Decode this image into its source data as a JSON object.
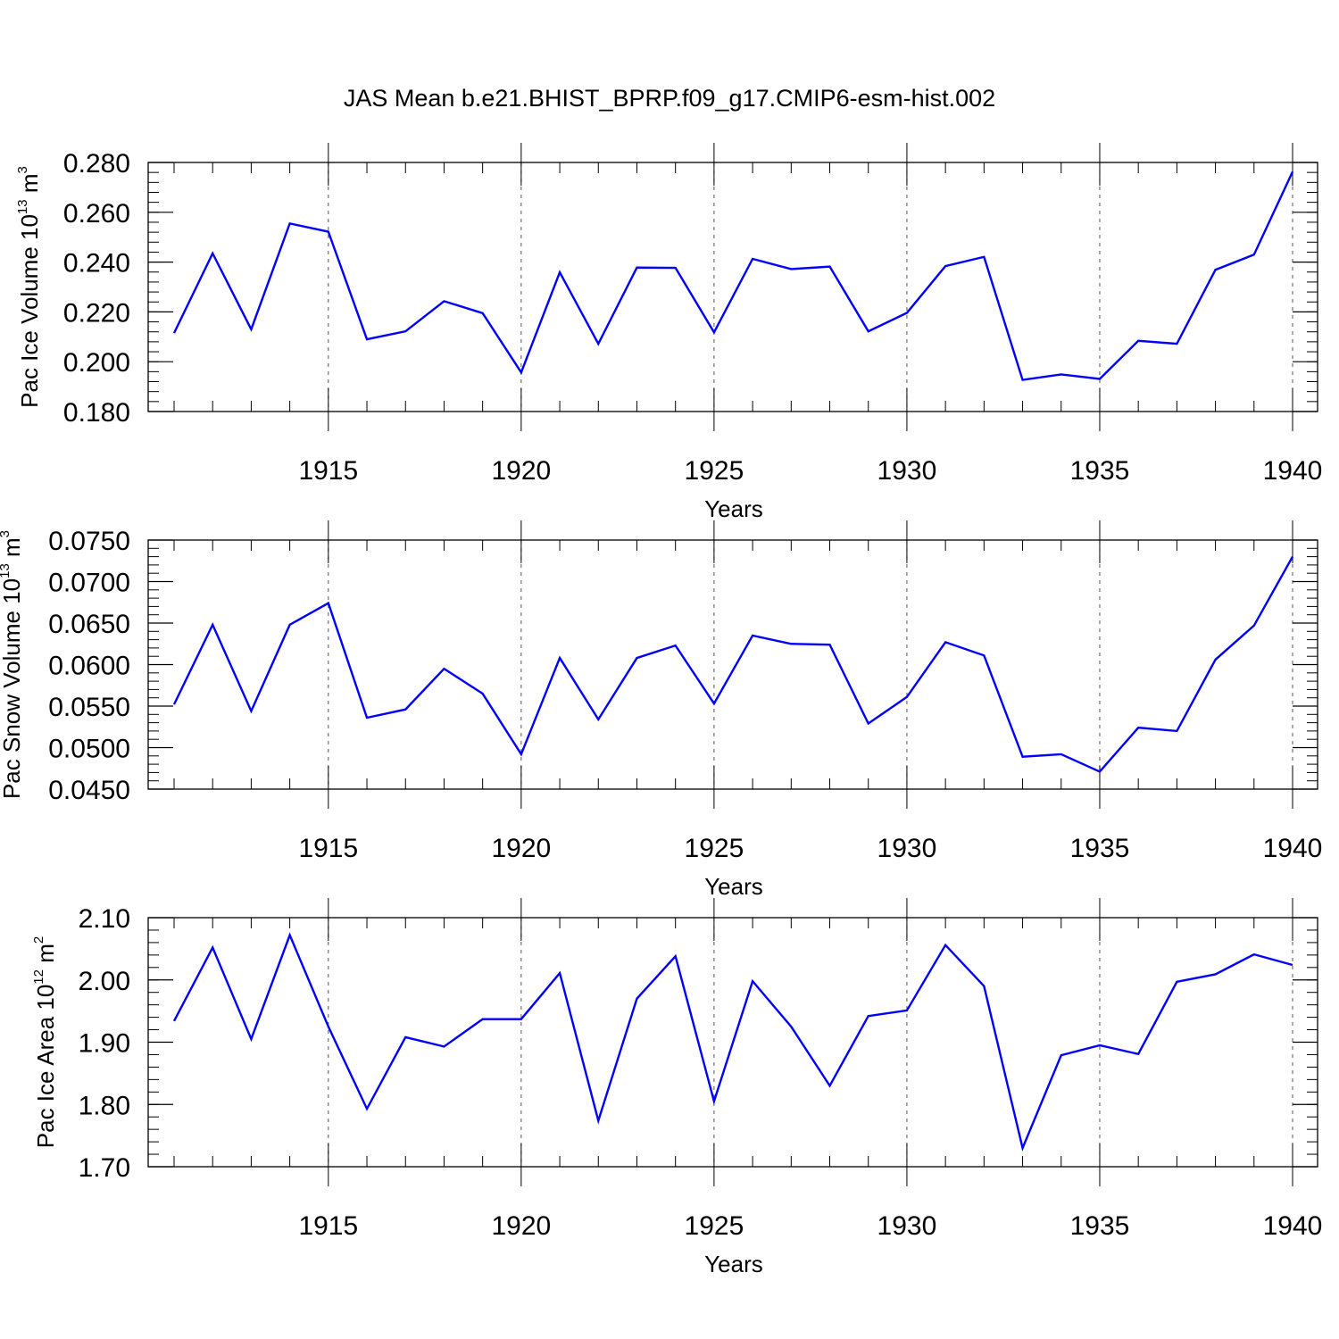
{
  "title": "JAS Mean b.e21.BHIST_BPRP.f09_g17.CMIP6-esm-hist.002",
  "colors": {
    "line": "#0000ff",
    "axis": "#000000",
    "grid": "#555555"
  },
  "chart_data": [
    {
      "type": "line",
      "xlabel": "Years",
      "ylabel": {
        "base": "Pac Ice Volume 10",
        "exp": "13",
        "unit": " m",
        "unit_exp": "3"
      },
      "xlim": [
        1911,
        1940
      ],
      "ylim": [
        0.18,
        0.28
      ],
      "x_ticks": [
        1915,
        1920,
        1925,
        1930,
        1935,
        1940
      ],
      "x_tick_labels": [
        "1915",
        "1920",
        "1925",
        "1930",
        "1935",
        "1940"
      ],
      "y_ticks": [
        0.18,
        0.2,
        0.22,
        0.24,
        0.26,
        0.28
      ],
      "y_tick_labels": [
        "0.180",
        "0.200",
        "0.220",
        "0.240",
        "0.260",
        "0.280"
      ],
      "y_minor_step": 0.004,
      "x": [
        1911,
        1912,
        1913,
        1914,
        1915,
        1916,
        1917,
        1918,
        1919,
        1920,
        1921,
        1922,
        1923,
        1924,
        1925,
        1926,
        1927,
        1928,
        1929,
        1930,
        1931,
        1932,
        1933,
        1934,
        1935,
        1936,
        1937,
        1938,
        1939,
        1940
      ],
      "series": [
        {
          "name": "Pac Ice Volume",
          "values": [
            0.2115,
            0.2435,
            0.213,
            0.2555,
            0.2522,
            0.209,
            0.2122,
            0.2243,
            0.2195,
            0.1957,
            0.2359,
            0.2072,
            0.2378,
            0.2377,
            0.2118,
            0.2413,
            0.2372,
            0.2382,
            0.2122,
            0.2196,
            0.2384,
            0.2421,
            0.1927,
            0.1949,
            0.1931,
            0.2084,
            0.2072,
            0.2369,
            0.243,
            0.2763
          ]
        }
      ]
    },
    {
      "type": "line",
      "xlabel": "Years",
      "ylabel": {
        "base": "Pac Snow Volume 10",
        "exp": "13",
        "unit": " m",
        "unit_exp": "3"
      },
      "xlim": [
        1911,
        1940
      ],
      "ylim": [
        0.045,
        0.075
      ],
      "x_ticks": [
        1915,
        1920,
        1925,
        1930,
        1935,
        1940
      ],
      "x_tick_labels": [
        "1915",
        "1920",
        "1925",
        "1930",
        "1935",
        "1940"
      ],
      "y_ticks": [
        0.045,
        0.05,
        0.055,
        0.06,
        0.065,
        0.07,
        0.075
      ],
      "y_tick_labels": [
        "0.0450",
        "0.0500",
        "0.0550",
        "0.0600",
        "0.0650",
        "0.0700",
        "0.0750"
      ],
      "y_minor_step": 0.001,
      "x": [
        1911,
        1912,
        1913,
        1914,
        1915,
        1916,
        1917,
        1918,
        1919,
        1920,
        1921,
        1922,
        1923,
        1924,
        1925,
        1926,
        1927,
        1928,
        1929,
        1930,
        1931,
        1932,
        1933,
        1934,
        1935,
        1936,
        1937,
        1938,
        1939,
        1940
      ],
      "series": [
        {
          "name": "Pac Snow Volume",
          "values": [
            0.0552,
            0.0648,
            0.0544,
            0.0648,
            0.0674,
            0.0536,
            0.0546,
            0.0595,
            0.0565,
            0.0492,
            0.0608,
            0.0534,
            0.0608,
            0.0623,
            0.0553,
            0.0635,
            0.0625,
            0.0624,
            0.0529,
            0.0561,
            0.0627,
            0.0611,
            0.0489,
            0.0492,
            0.0471,
            0.0524,
            0.052,
            0.0606,
            0.0647,
            0.073
          ]
        }
      ]
    },
    {
      "type": "line",
      "xlabel": "Years",
      "ylabel": {
        "base": "Pac Ice Area 10",
        "exp": "12",
        "unit": " m",
        "unit_exp": "2"
      },
      "xlim": [
        1911,
        1940
      ],
      "ylim": [
        1.7,
        2.1
      ],
      "x_ticks": [
        1915,
        1920,
        1925,
        1930,
        1935,
        1940
      ],
      "x_tick_labels": [
        "1915",
        "1920",
        "1925",
        "1930",
        "1935",
        "1940"
      ],
      "y_ticks": [
        1.7,
        1.8,
        1.9,
        2.0,
        2.1
      ],
      "y_tick_labels": [
        "1.70",
        "1.80",
        "1.90",
        "2.00",
        "2.10"
      ],
      "y_minor_step": 0.02,
      "x": [
        1911,
        1912,
        1913,
        1914,
        1915,
        1916,
        1917,
        1918,
        1919,
        1920,
        1921,
        1922,
        1923,
        1924,
        1925,
        1926,
        1927,
        1928,
        1929,
        1930,
        1931,
        1932,
        1933,
        1934,
        1935,
        1936,
        1937,
        1938,
        1939,
        1940
      ],
      "series": [
        {
          "name": "Pac Ice Area",
          "values": [
            1.934,
            2.052,
            1.905,
            2.072,
            1.925,
            1.793,
            1.908,
            1.893,
            1.937,
            1.937,
            2.011,
            1.774,
            1.97,
            2.038,
            1.805,
            1.998,
            1.925,
            1.83,
            1.942,
            1.951,
            2.056,
            1.99,
            1.73,
            1.879,
            1.895,
            1.881,
            1.997,
            2.009,
            2.041,
            2.024
          ]
        }
      ]
    }
  ]
}
